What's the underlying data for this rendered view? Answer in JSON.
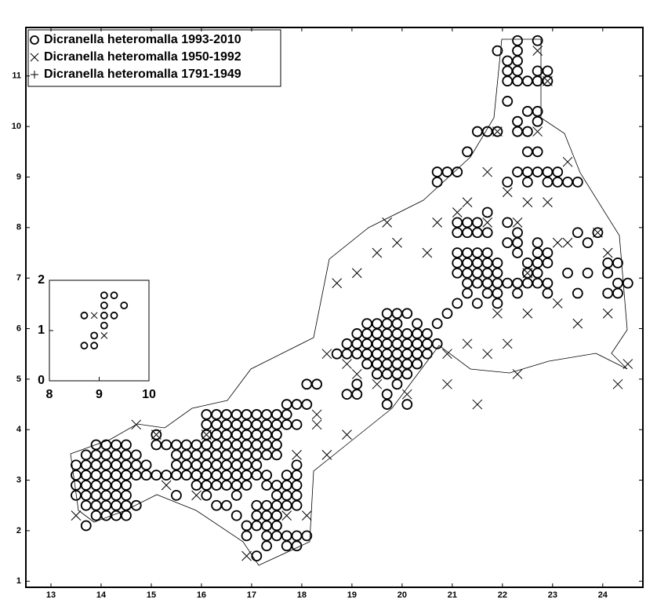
{
  "chart_data": [
    {
      "type": "scatter",
      "xlim": [
        12.5,
        24.8
      ],
      "ylim": [
        0.88,
        11.96
      ],
      "xticks": [
        13,
        14,
        15,
        16,
        17,
        18,
        19,
        20,
        21,
        22,
        23,
        24
      ],
      "yticks": [
        1,
        2,
        3,
        4,
        5,
        6,
        7,
        8,
        9,
        10,
        11
      ],
      "legend": "upper left",
      "series": [
        {
          "name": "Dicranella heteromalla 1993-2010",
          "marker": "circle",
          "color": "#000000",
          "x": [
            13.9,
            14.1,
            14.3,
            14.5,
            13.7,
            13.9,
            14.1,
            14.3,
            14.5,
            14.7,
            13.5,
            13.7,
            13.9,
            14.1,
            14.3,
            14.5,
            14.7,
            14.9,
            13.5,
            13.7,
            13.9,
            14.1,
            14.3,
            14.5,
            14.7,
            14.9,
            15.1,
            13.5,
            13.7,
            13.9,
            14.1,
            14.3,
            14.5,
            13.5,
            13.7,
            13.9,
            14.1,
            14.3,
            14.5,
            13.7,
            13.9,
            14.1,
            14.3,
            14.5,
            14.7,
            13.9,
            14.1,
            14.3,
            14.5,
            13.7,
            16.1,
            16.3,
            16.5,
            16.7,
            16.9,
            17.1,
            17.3,
            17.5,
            17.7,
            16.1,
            16.3,
            16.5,
            16.7,
            16.9,
            17.1,
            17.3,
            17.5,
            17.7,
            17.9,
            15.1,
            16.1,
            16.3,
            16.5,
            16.7,
            16.9,
            17.1,
            17.3,
            17.5,
            15.1,
            15.3,
            15.5,
            15.7,
            15.9,
            16.1,
            16.3,
            16.5,
            16.7,
            16.9,
            17.1,
            17.3,
            17.5,
            15.5,
            15.7,
            15.9,
            16.1,
            16.3,
            16.5,
            16.7,
            16.9,
            17.1,
            17.3,
            17.5,
            15.5,
            15.7,
            15.9,
            16.1,
            16.3,
            16.5,
            16.7,
            16.9,
            17.1,
            17.9,
            15.3,
            15.5,
            15.7,
            15.9,
            16.1,
            16.3,
            16.5,
            16.7,
            16.9,
            17.1,
            17.3,
            17.7,
            17.9,
            15.9,
            16.1,
            16.3,
            16.5,
            16.7,
            16.9,
            17.3,
            17.5,
            17.7,
            17.9,
            15.5,
            16.1,
            16.7,
            17.5,
            17.7,
            17.9,
            16.3,
            16.5,
            17.1,
            17.3,
            17.5,
            17.7,
            17.9,
            16.7,
            17.1,
            17.3,
            17.5,
            16.9,
            17.1,
            17.3,
            17.5,
            16.9,
            17.3,
            17.5,
            17.7,
            17.9,
            18.1,
            17.3,
            17.7,
            17.9,
            17.1,
            18.9,
            19.1,
            19.3,
            19.5,
            19.7,
            19.9,
            20.1,
            20.3,
            20.5,
            20.7,
            18.7,
            18.9,
            19.1,
            19.3,
            19.5,
            19.7,
            19.9,
            20.1,
            20.3,
            20.5,
            19.1,
            19.3,
            19.5,
            19.7,
            19.9,
            20.1,
            20.3,
            20.5,
            19.3,
            19.5,
            19.7,
            19.9,
            20.3,
            20.7,
            19.7,
            19.9,
            20.1,
            20.9,
            19.3,
            19.5,
            19.7,
            19.9,
            20.1,
            20.3,
            19.5,
            19.7,
            19.9,
            20.1,
            18.1,
            18.3,
            19.1,
            19.9,
            18.9,
            19.1,
            19.7,
            17.7,
            17.9,
            18.1,
            19.7,
            20.1,
            21.1,
            21.3,
            21.5,
            21.7,
            21.9,
            22.5,
            22.7,
            22.9,
            24.1,
            24.3,
            21.1,
            21.3,
            21.5,
            21.7,
            21.9,
            22.5,
            22.7,
            23.3,
            23.7,
            24.1,
            21.3,
            21.5,
            21.7,
            21.9,
            22.1,
            22.3,
            22.5,
            22.7,
            22.9,
            24.3,
            24.5,
            21.3,
            21.7,
            21.9,
            22.3,
            22.9,
            23.5,
            24.1,
            24.3,
            21.1,
            21.5,
            21.9,
            21.1,
            21.3,
            21.5,
            21.7,
            22.3,
            22.7,
            22.9,
            22.1,
            22.3,
            22.7,
            23.7,
            21.1,
            21.3,
            21.5,
            21.7,
            22.3,
            23.5,
            23.9,
            21.1,
            21.3,
            21.5,
            22.1,
            21.7,
            20.7,
            22.1,
            22.5,
            22.9,
            23.1,
            23.3,
            23.5,
            20.7,
            20.9,
            21.1,
            22.3,
            22.5,
            22.7,
            22.9,
            23.1,
            21.3,
            22.5,
            22.7,
            21.5,
            21.7,
            21.9,
            22.3,
            22.5,
            22.3,
            22.7,
            22.5,
            22.7,
            22.1,
            22.1,
            22.3,
            22.5,
            22.7,
            22.9,
            22.1,
            22.3,
            22.7,
            22.9,
            22.1,
            22.3,
            21.9,
            22.3,
            22.3,
            22.7
          ],
          "y": [
            3.7,
            3.7,
            3.7,
            3.7,
            3.5,
            3.5,
            3.5,
            3.5,
            3.5,
            3.5,
            3.3,
            3.3,
            3.3,
            3.3,
            3.3,
            3.3,
            3.3,
            3.3,
            3.1,
            3.1,
            3.1,
            3.1,
            3.1,
            3.1,
            3.1,
            3.1,
            3.1,
            2.9,
            2.9,
            2.9,
            2.9,
            2.9,
            2.9,
            2.7,
            2.7,
            2.7,
            2.7,
            2.7,
            2.7,
            2.5,
            2.5,
            2.5,
            2.5,
            2.5,
            2.5,
            2.3,
            2.3,
            2.3,
            2.3,
            2.1,
            4.3,
            4.3,
            4.3,
            4.3,
            4.3,
            4.3,
            4.3,
            4.3,
            4.3,
            4.1,
            4.1,
            4.1,
            4.1,
            4.1,
            4.1,
            4.1,
            4.1,
            4.1,
            4.1,
            3.9,
            3.9,
            3.9,
            3.9,
            3.9,
            3.9,
            3.9,
            3.9,
            3.9,
            3.7,
            3.7,
            3.7,
            3.7,
            3.7,
            3.7,
            3.7,
            3.7,
            3.7,
            3.7,
            3.7,
            3.7,
            3.7,
            3.5,
            3.5,
            3.5,
            3.5,
            3.5,
            3.5,
            3.5,
            3.5,
            3.5,
            3.5,
            3.5,
            3.3,
            3.3,
            3.3,
            3.3,
            3.3,
            3.3,
            3.3,
            3.3,
            3.3,
            3.3,
            3.1,
            3.1,
            3.1,
            3.1,
            3.1,
            3.1,
            3.1,
            3.1,
            3.1,
            3.1,
            3.1,
            3.1,
            3.1,
            2.9,
            2.9,
            2.9,
            2.9,
            2.9,
            2.9,
            2.9,
            2.9,
            2.9,
            2.9,
            2.7,
            2.7,
            2.7,
            2.7,
            2.7,
            2.7,
            2.5,
            2.5,
            2.5,
            2.5,
            2.5,
            2.5,
            2.5,
            2.3,
            2.3,
            2.3,
            2.3,
            2.1,
            2.1,
            2.1,
            2.1,
            1.9,
            1.9,
            1.9,
            1.9,
            1.9,
            1.9,
            1.7,
            1.7,
            1.7,
            1.5,
            5.7,
            5.7,
            5.7,
            5.7,
            5.7,
            5.7,
            5.7,
            5.7,
            5.7,
            5.7,
            5.5,
            5.5,
            5.5,
            5.5,
            5.5,
            5.5,
            5.5,
            5.5,
            5.5,
            5.5,
            5.9,
            5.9,
            5.9,
            5.9,
            5.9,
            5.9,
            5.9,
            5.9,
            6.1,
            6.1,
            6.1,
            6.1,
            6.1,
            6.1,
            6.3,
            6.3,
            6.3,
            6.3,
            5.3,
            5.3,
            5.3,
            5.3,
            5.3,
            5.3,
            5.1,
            5.1,
            5.1,
            5.1,
            4.9,
            4.9,
            4.9,
            4.9,
            4.7,
            4.7,
            4.7,
            4.5,
            4.5,
            4.5,
            4.5,
            4.5,
            7.3,
            7.3,
            7.3,
            7.3,
            7.3,
            7.3,
            7.3,
            7.3,
            7.3,
            7.3,
            7.1,
            7.1,
            7.1,
            7.1,
            7.1,
            7.1,
            7.1,
            7.1,
            7.1,
            7.1,
            6.9,
            6.9,
            6.9,
            6.9,
            6.9,
            6.9,
            6.9,
            6.9,
            6.9,
            6.9,
            6.9,
            6.7,
            6.7,
            6.7,
            6.7,
            6.7,
            6.7,
            6.7,
            6.7,
            6.5,
            6.5,
            6.5,
            7.5,
            7.5,
            7.5,
            7.5,
            7.5,
            7.5,
            7.5,
            7.7,
            7.7,
            7.7,
            7.7,
            7.9,
            7.9,
            7.9,
            7.9,
            7.9,
            7.9,
            7.9,
            8.1,
            8.1,
            8.1,
            8.1,
            8.3,
            8.9,
            8.9,
            8.9,
            8.9,
            8.9,
            8.9,
            8.9,
            9.1,
            9.1,
            9.1,
            9.1,
            9.1,
            9.1,
            9.1,
            9.1,
            9.5,
            9.5,
            9.5,
            9.9,
            9.9,
            9.9,
            9.9,
            9.9,
            10.1,
            10.1,
            10.3,
            10.3,
            10.5,
            10.9,
            10.9,
            10.9,
            10.9,
            10.9,
            11.1,
            11.1,
            11.1,
            11.1,
            11.3,
            11.3,
            11.5,
            11.5,
            11.7,
            11.7
          ]
        },
        {
          "name": "Dicranella heteromalla 1950-1992",
          "marker": "x",
          "color": "#000000",
          "x": [
            13.5,
            15.3,
            15.9,
            16.9,
            18.1,
            17.7,
            18.5,
            18.9,
            19.1,
            18.9,
            18.5,
            19.1,
            18.7,
            19.5,
            19.9,
            19.7,
            20.5,
            20.7,
            21.1,
            21.3,
            21.7,
            21.7,
            22.1,
            22.5,
            22.9,
            23.3,
            23.1,
            23.3,
            21.9,
            22.9,
            22.7,
            21.9,
            22.5,
            23.1,
            23.5,
            22.1,
            21.7,
            21.3,
            22.3,
            20.9,
            20.1,
            19.5,
            21.5,
            24.1,
            24.3,
            24.5,
            23.9,
            24.1,
            14.7,
            15.1,
            16.1,
            17.9,
            18.3,
            18.3,
            22.7,
            22.3,
            22.5,
            20.9
          ],
          "y": [
            2.3,
            2.9,
            2.7,
            1.5,
            2.3,
            2.3,
            3.5,
            3.9,
            5.1,
            5.3,
            5.5,
            7.1,
            6.9,
            7.5,
            7.7,
            8.1,
            7.5,
            8.1,
            8.3,
            8.5,
            8.1,
            9.1,
            8.7,
            8.5,
            8.5,
            9.3,
            7.7,
            7.7,
            9.9,
            10.9,
            11.5,
            6.3,
            6.3,
            6.5,
            6.1,
            5.7,
            5.5,
            5.7,
            5.1,
            4.9,
            4.7,
            4.9,
            4.5,
            6.3,
            4.9,
            5.3,
            7.9,
            7.5,
            4.1,
            3.9,
            3.9,
            3.5,
            4.3,
            4.1,
            9.9,
            8.1,
            7.1,
            5.5
          ]
        },
        {
          "name": "Dicranella heteromalla 1791-1949",
          "marker": "plus",
          "color": "#000000",
          "x": [],
          "y": []
        }
      ]
    },
    {
      "type": "scatter",
      "xlim": [
        8,
        10
      ],
      "ylim": [
        0,
        2
      ],
      "xticks": [
        8,
        9,
        10
      ],
      "yticks": [
        0,
        1,
        2
      ],
      "series": [
        {
          "marker": "circle",
          "color": "#000000",
          "x": [
            9.1,
            9.3,
            9.5,
            9.1,
            8.7,
            9.1,
            9.3,
            9.1,
            8.9,
            8.7,
            8.9
          ],
          "y": [
            1.7,
            1.7,
            1.5,
            1.5,
            1.3,
            1.3,
            1.3,
            1.1,
            0.9,
            0.7,
            0.7
          ]
        },
        {
          "marker": "x",
          "color": "#000000",
          "x": [
            8.9,
            9.1
          ],
          "y": [
            1.3,
            0.9
          ]
        }
      ]
    }
  ]
}
